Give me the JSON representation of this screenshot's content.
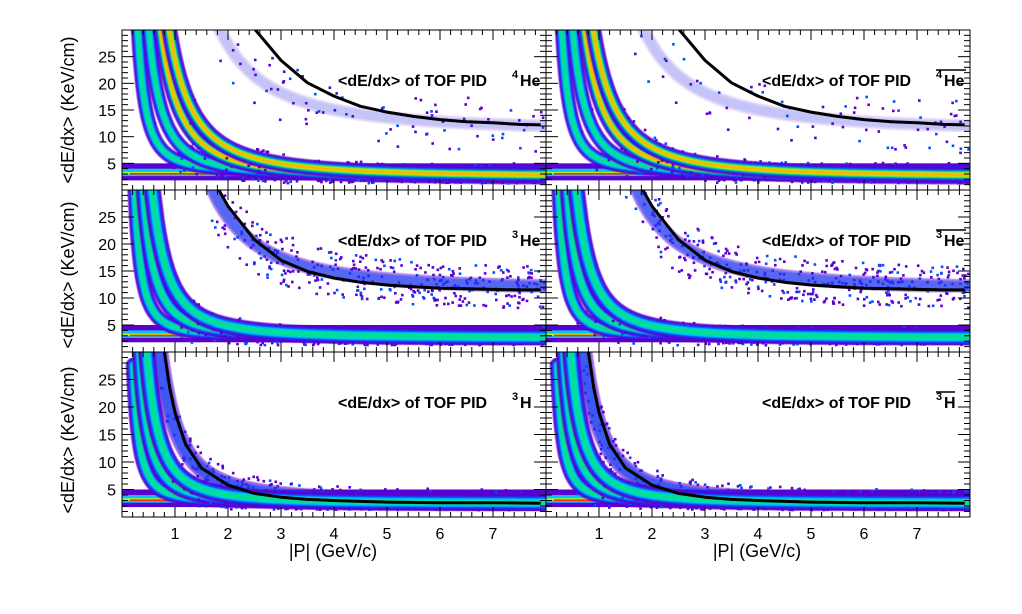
{
  "chart_data": {
    "type": "heatmap",
    "layout": "3 rows x 2 columns",
    "shared_xlabel": "|P| (GeV/c)",
    "shared_ylabel": "<dE/dx> (KeV/cm)",
    "xlim": [
      0.0,
      8.0
    ],
    "ylim": [
      0,
      30
    ],
    "x_ticks": [
      1,
      2,
      3,
      4,
      5,
      6,
      7
    ],
    "y_ticks": [
      5,
      10,
      15,
      20,
      25
    ],
    "colormap": [
      "#5a00d0",
      "#0050ff",
      "#00c8ff",
      "#00e090",
      "#c8f000",
      "#ffb000",
      "#ff3000"
    ],
    "expected_curve_color": "#000000",
    "panels": [
      {
        "title_prefix": "<dE/dx> of TOF PID",
        "species_mass": "4",
        "species_symbol": "He",
        "anti": false,
        "expected_curve": {
          "x": [
            2.5,
            3.0,
            3.5,
            4.0,
            4.5,
            5.0,
            5.5,
            6.0,
            6.5,
            7.0,
            7.5,
            7.9
          ],
          "y": [
            30.2,
            24.3,
            20.1,
            17.6,
            15.7,
            14.6,
            13.8,
            13.2,
            12.8,
            12.6,
            12.3,
            12.2
          ]
        }
      },
      {
        "title_prefix": "<dE/dx> of TOF PID",
        "species_mass": "4",
        "species_symbol": "He",
        "anti": true,
        "expected_curve": {
          "x": [
            2.5,
            3.0,
            3.5,
            4.0,
            4.5,
            5.0,
            5.5,
            6.0,
            6.5,
            7.0,
            7.5,
            7.9
          ],
          "y": [
            30.2,
            24.3,
            20.1,
            17.6,
            15.7,
            14.6,
            13.8,
            13.2,
            12.8,
            12.6,
            12.3,
            12.2
          ]
        }
      },
      {
        "title_prefix": "<dE/dx> of TOF PID",
        "species_mass": "3",
        "species_symbol": "He",
        "anti": false,
        "expected_curve": {
          "x": [
            1.8,
            2.0,
            2.5,
            3.0,
            3.5,
            4.0,
            4.5,
            5.0,
            5.5,
            6.0,
            6.5,
            7.0,
            7.5,
            7.9
          ],
          "y": [
            30.5,
            27.0,
            20.8,
            17.0,
            14.9,
            13.7,
            12.9,
            12.4,
            12.1,
            11.8,
            11.7,
            11.6,
            11.5,
            11.5
          ]
        }
      },
      {
        "title_prefix": "<dE/dx> of TOF PID",
        "species_mass": "3",
        "species_symbol": "He",
        "anti": true,
        "expected_curve": {
          "x": [
            1.8,
            2.0,
            2.5,
            3.0,
            3.5,
            4.0,
            4.5,
            5.0,
            5.5,
            6.0,
            6.5,
            7.0,
            7.5,
            7.9
          ],
          "y": [
            30.5,
            27.0,
            20.8,
            17.0,
            14.9,
            13.7,
            12.9,
            12.4,
            12.1,
            11.8,
            11.7,
            11.6,
            11.5,
            11.5
          ]
        }
      },
      {
        "title_prefix": "<dE/dx> of TOF PID",
        "species_mass": "3",
        "species_symbol": "H",
        "anti": false,
        "expected_curve": {
          "x": [
            0.8,
            0.9,
            1.0,
            1.2,
            1.5,
            2.0,
            2.5,
            3.0,
            3.5,
            4.0,
            5.0,
            6.0,
            7.0,
            7.9
          ],
          "y": [
            30.0,
            23.5,
            19.0,
            13.2,
            8.9,
            5.8,
            4.3,
            3.6,
            3.2,
            3.0,
            2.7,
            2.6,
            2.6,
            2.5
          ]
        }
      },
      {
        "title_prefix": "<dE/dx> of TOF PID",
        "species_mass": "3",
        "species_symbol": "H",
        "anti": true,
        "expected_curve": {
          "x": [
            0.8,
            0.9,
            1.0,
            1.2,
            1.5,
            2.0,
            2.5,
            3.0,
            3.5,
            4.0,
            5.0,
            6.0,
            7.0,
            7.9
          ],
          "y": [
            30.0,
            23.5,
            19.0,
            13.2,
            8.9,
            5.8,
            4.3,
            3.6,
            3.2,
            3.0,
            2.7,
            2.6,
            2.6,
            2.5
          ]
        }
      }
    ]
  }
}
